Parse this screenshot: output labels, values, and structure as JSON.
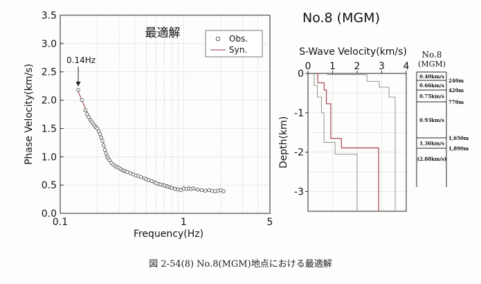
{
  "caption": "図 2-54(8) No.8(MGM)地点における最適解",
  "right_title": "No.8 (MGM)",
  "chart_data": [
    {
      "type": "scatter",
      "title": "最適解",
      "xlabel": "Frequency(Hz)",
      "ylabel": "Phase Velocity(km/s)",
      "xscale": "log",
      "xlim": [
        0.1,
        5
      ],
      "ylim": [
        0,
        3.5
      ],
      "xticks": [
        {
          "v": 0.1,
          "label": "0.1"
        },
        {
          "v": 1,
          "label": "1"
        },
        {
          "v": 5,
          "label": "5"
        }
      ],
      "yticks": [
        "0.0",
        "0.5",
        "1.0",
        "1.5",
        "2.0",
        "2.5",
        "3.0",
        "3.5"
      ],
      "grid": true,
      "legend_position": "top-right",
      "annotation": {
        "text": "0.14Hz",
        "x": 0.14,
        "y": 2.18
      },
      "series": [
        {
          "name": "Obs.",
          "style": "open-circles",
          "color": "#555555",
          "x": [
            0.14,
            0.15,
            0.16,
            0.165,
            0.17,
            0.175,
            0.18,
            0.185,
            0.19,
            0.195,
            0.2,
            0.205,
            0.21,
            0.215,
            0.22,
            0.225,
            0.23,
            0.235,
            0.24,
            0.245,
            0.25,
            0.26,
            0.27,
            0.28,
            0.29,
            0.3,
            0.31,
            0.32,
            0.33,
            0.34,
            0.35,
            0.37,
            0.39,
            0.41,
            0.43,
            0.45,
            0.48,
            0.5,
            0.52,
            0.55,
            0.58,
            0.6,
            0.63,
            0.65,
            0.68,
            0.7,
            0.73,
            0.75,
            0.78,
            0.8,
            0.85,
            0.9,
            0.95,
            1.0,
            1.05,
            1.1,
            1.15,
            1.2,
            1.3,
            1.4,
            1.5,
            1.6,
            1.7,
            1.8,
            1.9,
            2.0,
            2.1
          ],
          "y": [
            2.18,
            2.0,
            1.82,
            1.75,
            1.7,
            1.65,
            1.62,
            1.58,
            1.55,
            1.52,
            1.5,
            1.45,
            1.4,
            1.34,
            1.28,
            1.2,
            1.12,
            1.06,
            1.0,
            0.97,
            0.94,
            0.89,
            0.86,
            0.83,
            0.82,
            0.8,
            0.78,
            0.76,
            0.75,
            0.74,
            0.73,
            0.71,
            0.69,
            0.67,
            0.66,
            0.64,
            0.62,
            0.6,
            0.59,
            0.57,
            0.55,
            0.53,
            0.52,
            0.51,
            0.5,
            0.49,
            0.48,
            0.47,
            0.46,
            0.45,
            0.43,
            0.42,
            0.41,
            0.44,
            0.43,
            0.44,
            0.43,
            0.44,
            0.42,
            0.41,
            0.4,
            0.41,
            0.4,
            0.39,
            0.4,
            0.41,
            0.39
          ]
        },
        {
          "name": "Syn.",
          "style": "line",
          "color": "#b05a6a",
          "x": [
            0.14,
            0.16,
            0.18,
            0.2,
            0.22,
            0.24,
            0.26,
            0.28,
            0.3,
            0.33,
            0.36,
            0.4,
            0.45,
            0.5,
            0.55,
            0.6,
            0.7,
            0.8,
            0.9,
            1.0,
            1.2,
            1.4,
            1.6,
            1.8,
            2.1
          ],
          "y": [
            2.15,
            1.85,
            1.63,
            1.5,
            1.3,
            1.02,
            0.91,
            0.85,
            0.8,
            0.76,
            0.72,
            0.68,
            0.64,
            0.6,
            0.57,
            0.54,
            0.5,
            0.47,
            0.44,
            0.43,
            0.42,
            0.41,
            0.41,
            0.4,
            0.4
          ]
        }
      ]
    },
    {
      "type": "line",
      "title": "S-Wave Velocity(km/s)",
      "xlabel": "",
      "ylabel": "Depth(km)",
      "xlim": [
        0,
        4
      ],
      "ylim": [
        -3.5,
        0
      ],
      "xticks": [
        "0",
        "1",
        "2",
        "3",
        "4"
      ],
      "yticks": [
        {
          "v": 0,
          "label": "0"
        },
        {
          "v": -1,
          "label": "-1"
        },
        {
          "v": -2,
          "label": "-2"
        },
        {
          "v": -3,
          "label": "-3"
        }
      ],
      "grid": true,
      "series": [
        {
          "style": "bold",
          "color": "#b05a6a",
          "x": [
            0.4,
            0.4,
            0.66,
            0.66,
            0.75,
            0.75,
            0.93,
            0.93,
            1.36,
            1.36,
            2.88,
            2.88
          ],
          "y": [
            0,
            -0.24,
            -0.24,
            -0.42,
            -0.42,
            -0.77,
            -0.77,
            -1.65,
            -1.65,
            -1.89,
            -1.89,
            -3.5
          ]
        },
        {
          "style": "thin",
          "color": "#777777",
          "x": [
            0.25,
            0.25,
            0.38,
            0.38,
            0.55,
            0.55,
            0.65,
            0.65,
            1.1,
            1.1,
            2.0,
            2.0
          ],
          "y": [
            0,
            -0.3,
            -0.3,
            -0.6,
            -0.6,
            -1.0,
            -1.0,
            -1.75,
            -1.75,
            -2.05,
            -2.05,
            -3.5
          ]
        },
        {
          "style": "thin",
          "color": "#777777",
          "x": [
            0.8,
            0.8,
            2.4,
            2.4,
            2.9,
            2.9,
            3.3,
            3.3,
            3.55,
            3.55
          ],
          "y": [
            0,
            -0.03,
            -0.03,
            -0.2,
            -0.2,
            -0.35,
            -0.35,
            -0.6,
            -0.6,
            -3.5
          ]
        }
      ]
    },
    {
      "type": "table",
      "title": "No.8\n(MGM)",
      "layers": [
        {
          "velocity": "0.40km/s",
          "bottom": "240m"
        },
        {
          "velocity": "0.66km/s",
          "bottom": "420m"
        },
        {
          "velocity": "0.75km/s",
          "bottom": "770m"
        },
        {
          "velocity": "0.93km/s",
          "bottom": "1,650m"
        },
        {
          "velocity": "1.36km/s",
          "bottom": "1,890m"
        },
        {
          "velocity": "(2.88km/s)",
          "bottom": ""
        }
      ]
    }
  ]
}
